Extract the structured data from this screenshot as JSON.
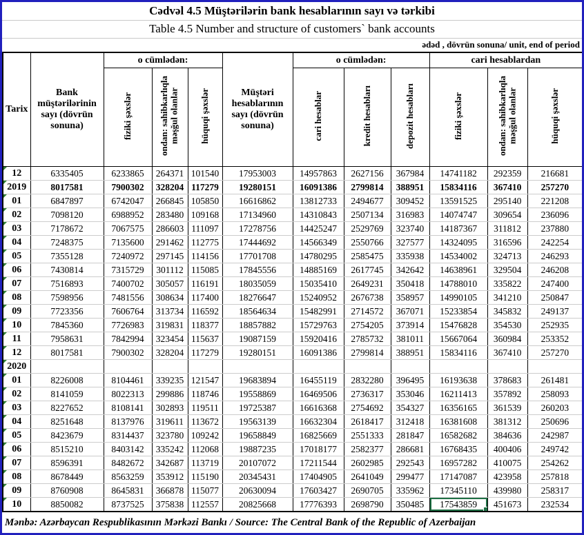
{
  "titles": {
    "az": "Cədvəl 4.5 Müştərilərin bank hesablarının sayı və tərkibi",
    "en": "Table 4.5 Number and structure of customers` bank accounts",
    "unit": "ədəd , dövrün sonuna/ unit, end of period"
  },
  "table": {
    "headers": {
      "tarix": "Tarix",
      "bank_customers": "Bank müştərilərinin sayı (dövrün sonuna)",
      "including_1": "o cümlədən:",
      "fiziki_1": "fiziki şəxslər",
      "ondan_1": "ondan: sahibkarlıqla məşğul olanlar",
      "huquqi_1": "hüquqi şəxslər",
      "customer_accounts": "Müştəri hesablarının sayı (dövrün sonuna)",
      "including_2": "o cümlədən:",
      "cari": "cari hesablar",
      "kredit": "kredit hesabları",
      "depozit": "depozit hesabları",
      "from_current": "cari hesablardan",
      "fiziki_2": "fiziki şəxslər",
      "ondan_2": "ondan: sahibkarlıqla məşğul olanlar",
      "huquqi_2": "hüquqi şəxslər"
    },
    "selected_cell": {
      "row": 24,
      "col": 8
    },
    "rows": [
      {
        "label": "12",
        "bold": false,
        "values": [
          "6335405",
          "6233865",
          "264371",
          "101540",
          "17953003",
          "14957863",
          "2627156",
          "367984",
          "14741182",
          "292359",
          "216681"
        ]
      },
      {
        "label": "2019",
        "bold": true,
        "values": [
          "8017581",
          "7900302",
          "328204",
          "117279",
          "19280151",
          "16091386",
          "2799814",
          "388951",
          "15834116",
          "367410",
          "257270"
        ]
      },
      {
        "label": "01",
        "bold": false,
        "values": [
          "6847897",
          "6742047",
          "266845",
          "105850",
          "16616862",
          "13812733",
          "2494677",
          "309452",
          "13591525",
          "295140",
          "221208"
        ]
      },
      {
        "label": "02",
        "bold": false,
        "values": [
          "7098120",
          "6988952",
          "283480",
          "109168",
          "17134960",
          "14310843",
          "2507134",
          "316983",
          "14074747",
          "309654",
          "236096"
        ]
      },
      {
        "label": "03",
        "bold": false,
        "values": [
          "7178672",
          "7067575",
          "286603",
          "111097",
          "17278756",
          "14425247",
          "2529769",
          "323740",
          "14187367",
          "311812",
          "237880"
        ]
      },
      {
        "label": "04",
        "bold": false,
        "values": [
          "7248375",
          "7135600",
          "291462",
          "112775",
          "17444692",
          "14566349",
          "2550766",
          "327577",
          "14324095",
          "316596",
          "242254"
        ]
      },
      {
        "label": "05",
        "bold": false,
        "values": [
          "7355128",
          "7240972",
          "297145",
          "114156",
          "17701708",
          "14780295",
          "2585475",
          "335938",
          "14534002",
          "324713",
          "246293"
        ]
      },
      {
        "label": "06",
        "bold": false,
        "values": [
          "7430814",
          "7315729",
          "301112",
          "115085",
          "17845556",
          "14885169",
          "2617745",
          "342642",
          "14638961",
          "329504",
          "246208"
        ]
      },
      {
        "label": "07",
        "bold": false,
        "values": [
          "7516893",
          "7400702",
          "305057",
          "116191",
          "18035059",
          "15035410",
          "2649231",
          "350418",
          "14788010",
          "335822",
          "247400"
        ]
      },
      {
        "label": "08",
        "bold": false,
        "values": [
          "7598956",
          "7481556",
          "308634",
          "117400",
          "18276647",
          "15240952",
          "2676738",
          "358957",
          "14990105",
          "341210",
          "250847"
        ]
      },
      {
        "label": "09",
        "bold": false,
        "values": [
          "7723356",
          "7606764",
          "313734",
          "116592",
          "18564634",
          "15482991",
          "2714572",
          "367071",
          "15233854",
          "345832",
          "249137"
        ]
      },
      {
        "label": "10",
        "bold": false,
        "values": [
          "7845360",
          "7726983",
          "319831",
          "118377",
          "18857882",
          "15729763",
          "2754205",
          "373914",
          "15476828",
          "354530",
          "252935"
        ]
      },
      {
        "label": "11",
        "bold": false,
        "values": [
          "7958631",
          "7842994",
          "323454",
          "115637",
          "19087159",
          "15920416",
          "2785732",
          "381011",
          "15667064",
          "360984",
          "253352"
        ]
      },
      {
        "label": "12",
        "bold": false,
        "values": [
          "8017581",
          "7900302",
          "328204",
          "117279",
          "19280151",
          "16091386",
          "2799814",
          "388951",
          "15834116",
          "367410",
          "257270"
        ]
      },
      {
        "label": "2020",
        "bold": true,
        "values": [
          "",
          "",
          "",
          "",
          "",
          "",
          "",
          "",
          "",
          "",
          ""
        ]
      },
      {
        "label": "01",
        "bold": false,
        "values": [
          "8226008",
          "8104461",
          "339235",
          "121547",
          "19683894",
          "16455119",
          "2832280",
          "396495",
          "16193638",
          "378683",
          "261481"
        ]
      },
      {
        "label": "02",
        "bold": false,
        "values": [
          "8141059",
          "8022313",
          "299886",
          "118746",
          "19558869",
          "16469506",
          "2736317",
          "353046",
          "16211413",
          "357892",
          "258093"
        ]
      },
      {
        "label": "03",
        "bold": false,
        "values": [
          "8227652",
          "8108141",
          "302893",
          "119511",
          "19725387",
          "16616368",
          "2754692",
          "354327",
          "16356165",
          "361539",
          "260203"
        ]
      },
      {
        "label": "04",
        "bold": false,
        "values": [
          "8251648",
          "8137976",
          "319611",
          "113672",
          "19563139",
          "16632304",
          "2618417",
          "312418",
          "16381608",
          "381312",
          "250696"
        ]
      },
      {
        "label": "05",
        "bold": false,
        "values": [
          "8423679",
          "8314437",
          "323780",
          "109242",
          "19658849",
          "16825669",
          "2551333",
          "281847",
          "16582682",
          "384636",
          "242987"
        ]
      },
      {
        "label": "06",
        "bold": false,
        "values": [
          "8515210",
          "8403142",
          "335242",
          "112068",
          "19887235",
          "17018177",
          "2582377",
          "286681",
          "16768435",
          "400406",
          "249742"
        ]
      },
      {
        "label": "07",
        "bold": false,
        "values": [
          "8596391",
          "8482672",
          "342687",
          "113719",
          "20107072",
          "17211544",
          "2602985",
          "292543",
          "16957282",
          "410075",
          "254262"
        ]
      },
      {
        "label": "08",
        "bold": false,
        "values": [
          "8678449",
          "8563259",
          "353912",
          "115190",
          "20345431",
          "17404905",
          "2641049",
          "299477",
          "17147087",
          "423958",
          "257818"
        ]
      },
      {
        "label": "09",
        "bold": false,
        "values": [
          "8760908",
          "8645831",
          "366878",
          "115077",
          "20630094",
          "17603427",
          "2690705",
          "335962",
          "17345110",
          "439980",
          "258317"
        ]
      },
      {
        "label": "10",
        "bold": false,
        "values": [
          "8850082",
          "8737525",
          "375838",
          "112557",
          "20825668",
          "17776393",
          "2698790",
          "350485",
          "17543859",
          "451673",
          "232534"
        ]
      }
    ]
  },
  "footer": {
    "source": "Mənbə: Azərbaycan Respublikasının Mərkəzi Bankı / Source: The Central Bank of the Republic of Azerbaijan"
  }
}
